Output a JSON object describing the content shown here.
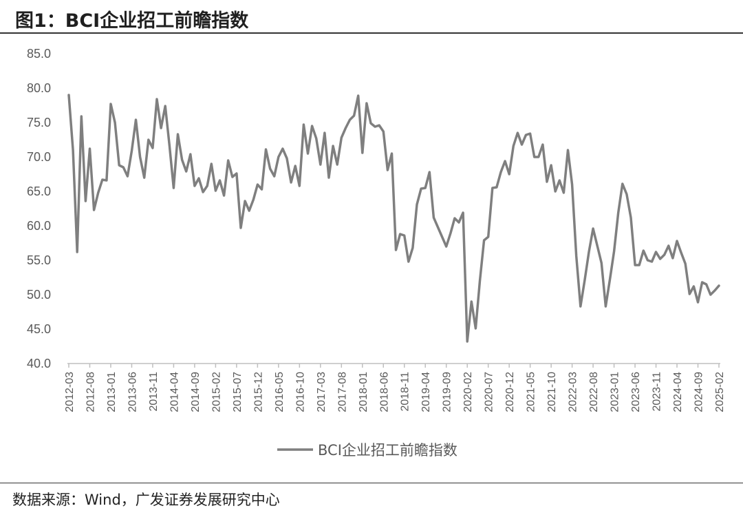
{
  "figure": {
    "title": "图1：BCI企业招工前瞻指数",
    "source": "数据来源：Wind，广发证券发展研究中心"
  },
  "colors": {
    "series": "#7f7f7f",
    "axis": "#bfbfbf",
    "text": "#595959"
  },
  "chart_data": {
    "type": "line",
    "grid": false,
    "legend_position": "bottom-center",
    "ylim": [
      40,
      85
    ],
    "yticks": [
      "40.0",
      "45.0",
      "50.0",
      "55.0",
      "60.0",
      "65.0",
      "70.0",
      "75.0",
      "80.0",
      "85.0"
    ],
    "xticks": [
      "2012-03",
      "2012-08",
      "2013-01",
      "2013-06",
      "2013-11",
      "2014-04",
      "2014-09",
      "2015-02",
      "2015-07",
      "2015-12",
      "2016-05",
      "2016-10",
      "2017-03",
      "2017-08",
      "2018-01",
      "2018-06",
      "2018-11",
      "2019-04",
      "2019-09",
      "2020-02",
      "2020-07",
      "2020-12",
      "2021-05",
      "2021-10",
      "2022-03",
      "2022-08",
      "2023-01",
      "2023-06",
      "2023-11",
      "2024-04",
      "2024-09",
      "2025-02"
    ],
    "series": [
      {
        "name": "BCI企业招工前瞻指数",
        "start": "2012-03",
        "values": [
          79.0,
          71.0,
          56.2,
          75.9,
          63.6,
          71.2,
          62.3,
          64.8,
          66.7,
          66.6,
          77.7,
          75.0,
          68.8,
          68.5,
          67.2,
          70.9,
          75.4,
          70.0,
          67.0,
          72.5,
          71.3,
          78.4,
          74.2,
          77.4,
          71.7,
          65.5,
          73.3,
          69.6,
          67.9,
          70.4,
          65.8,
          66.9,
          64.9,
          65.8,
          69.0,
          65.1,
          66.6,
          64.4,
          69.5,
          67.1,
          67.6,
          59.7,
          63.6,
          62.2,
          63.8,
          66.0,
          65.3,
          71.1,
          68.3,
          67.2,
          70.0,
          71.2,
          69.8,
          66.3,
          68.7,
          65.8,
          74.7,
          70.5,
          74.5,
          72.7,
          68.9,
          73.5,
          67.0,
          71.6,
          68.9,
          72.8,
          74.2,
          75.4,
          76.0,
          78.9,
          70.6,
          77.8,
          74.9,
          74.4,
          74.6,
          73.7,
          68.1,
          70.5,
          56.5,
          58.8,
          58.6,
          54.8,
          56.8,
          63.1,
          65.4,
          65.5,
          67.8,
          61.2,
          59.8,
          58.4,
          57.0,
          58.9,
          61.1,
          60.5,
          61.9,
          43.2,
          49.0,
          45.1,
          52.0,
          57.9,
          58.4,
          65.5,
          65.6,
          67.8,
          69.4,
          67.5,
          71.6,
          73.5,
          71.8,
          73.2,
          73.4,
          70.0,
          70.0,
          71.8,
          66.4,
          68.8,
          65.0,
          66.6,
          64.8,
          71.0,
          66.0,
          55.6,
          48.3,
          52.1,
          56.2,
          59.6,
          57.1,
          54.6,
          48.3,
          52.2,
          56.3,
          61.9,
          66.1,
          64.6,
          61.2,
          54.3,
          54.3,
          56.4,
          55.0,
          54.8,
          56.2,
          55.2,
          55.8,
          57.1,
          55.3,
          57.8,
          56.1,
          54.5,
          50.1,
          51.2,
          48.9,
          51.8,
          51.5,
          50.0,
          50.6,
          51.3
        ]
      }
    ]
  }
}
